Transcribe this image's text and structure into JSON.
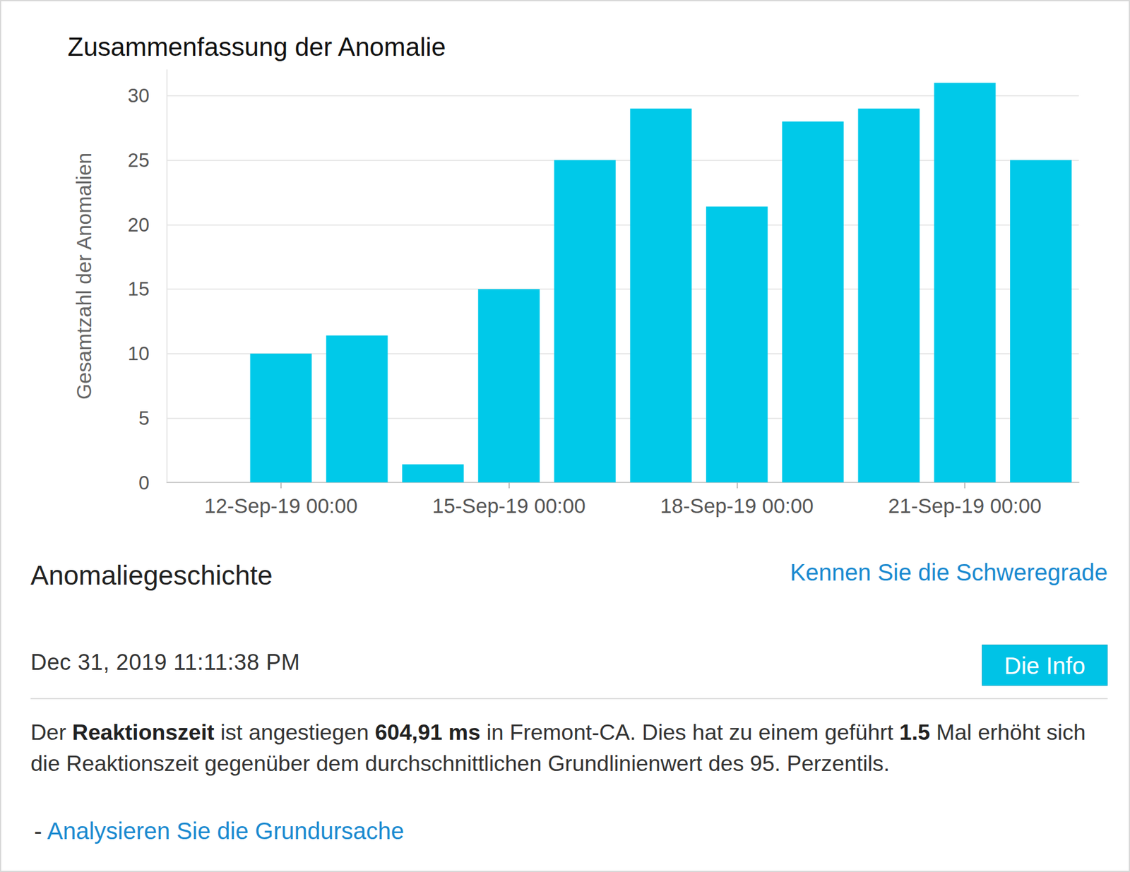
{
  "chart_data": {
    "type": "bar",
    "title": "Zusammenfassung der Anomalie",
    "y_label": "Gesamtzahl der Anomalien",
    "categories": [
      null,
      "12-Sep-19 00:00",
      null,
      null,
      "15-Sep-19 00:00",
      null,
      null,
      "18-Sep-19 00:00",
      null,
      null,
      "21-Sep-19 00:00",
      null
    ],
    "values": [
      0,
      10,
      11.4,
      1.4,
      15,
      25,
      29,
      21.4,
      28,
      29,
      31,
      25
    ],
    "color": "#00c9e9",
    "ylim": [
      0,
      32
    ],
    "yticks": [
      0,
      5,
      10,
      15,
      20,
      25,
      30
    ],
    "grid": true
  },
  "history": {
    "heading": "Anomaliegeschichte",
    "link": "Kennen Sie die Schweregrade",
    "timestamp": "Dec 31, 2019 11:11:38 PM",
    "button": "Die Info",
    "message": [
      {
        "text": "Der ",
        "bold": false
      },
      {
        "text": "Reaktionszeit",
        "bold": true
      },
      {
        "text": " ist angestiegen ",
        "bold": false
      },
      {
        "text": "604,91 ms",
        "bold": true
      },
      {
        "text": " in Fremont-CA. Dies hat zu einem geführt ",
        "bold": false
      },
      {
        "text": "1.5",
        "bold": true
      },
      {
        "text": " Mal erhöht sich die Reaktionszeit gegenüber dem durchschnittlichen Grundlinienwert des 95. Perzentils.",
        "bold": false
      }
    ],
    "action_prefix": "-",
    "action_link": "Analysieren Sie die Grundursache"
  }
}
